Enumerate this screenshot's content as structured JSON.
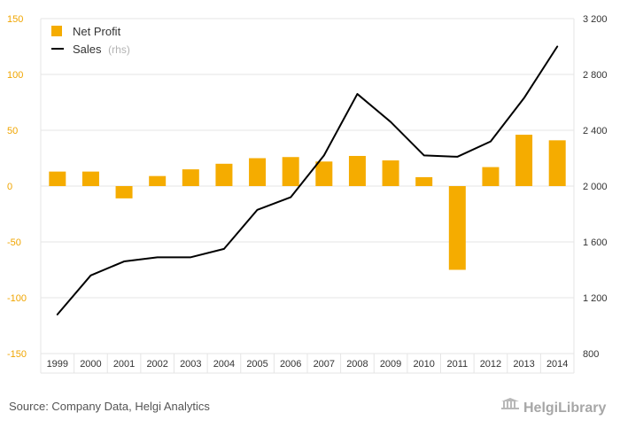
{
  "chart_data": {
    "type": "bar",
    "categories": [
      "1999",
      "2000",
      "2001",
      "2002",
      "2003",
      "2004",
      "2005",
      "2006",
      "2007",
      "2008",
      "2009",
      "2010",
      "2011",
      "2012",
      "2013",
      "2014"
    ],
    "series": [
      {
        "name": "Net Profit",
        "kind": "bar",
        "axis": "left",
        "color": "#f5ac00",
        "values": [
          13,
          13,
          -11,
          9,
          15,
          20,
          25,
          26,
          22,
          27,
          23,
          8,
          -75,
          17,
          46,
          41
        ]
      },
      {
        "name": "Sales",
        "kind": "line",
        "axis": "right",
        "color": "#000000",
        "values": [
          1080,
          1360,
          1460,
          1490,
          1490,
          1550,
          1830,
          1920,
          2220,
          2660,
          2460,
          2220,
          2210,
          2320,
          2630,
          3000
        ]
      }
    ],
    "y_left": {
      "ylim": [
        -150,
        150
      ],
      "ticks": [
        "150",
        "100",
        "50",
        "0",
        "-50",
        "-100",
        "-150"
      ]
    },
    "y_right": {
      "ylim": [
        800,
        3200
      ],
      "ticks": [
        "3 200",
        "2 800",
        "2 400",
        "2 000",
        "1 600",
        "1 200",
        "800"
      ]
    },
    "legend": {
      "position": "top-left",
      "items": [
        {
          "label": "Net Profit",
          "suffix": ""
        },
        {
          "label": "Sales",
          "suffix": "(rhs)"
        }
      ]
    },
    "grid": true
  },
  "footer": {
    "source": "Source: Company Data, Helgi Analytics",
    "brand": "HelgiLibrary"
  }
}
